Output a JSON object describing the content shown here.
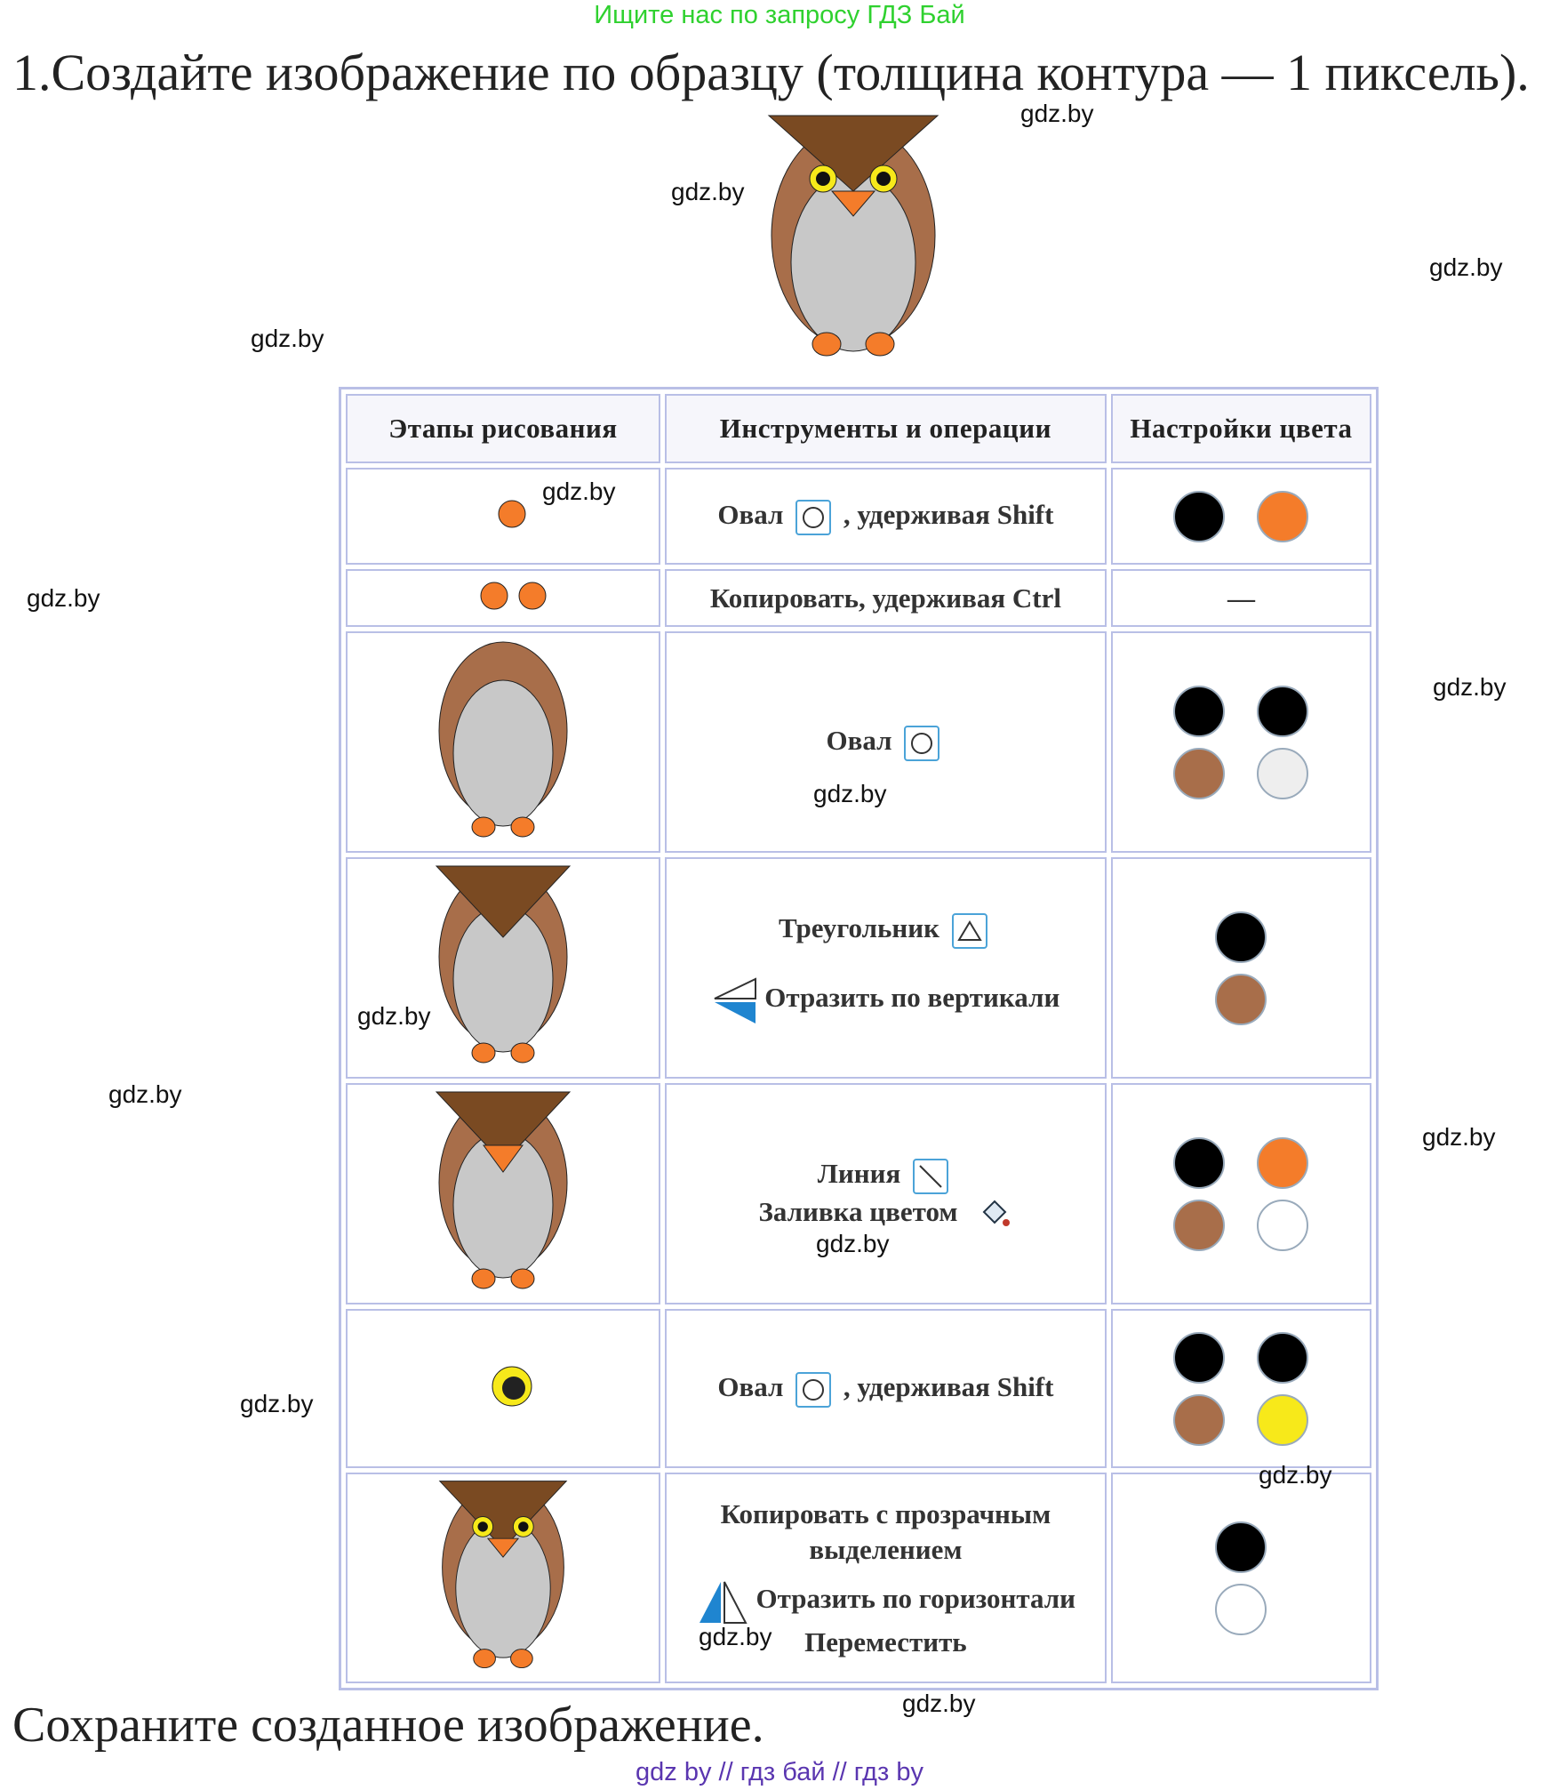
{
  "promo": "Ищите нас по запросу ГДЗ Бай",
  "task": {
    "title": "1.Создайте изображение по образцу (толщина контура — 1 пиксель).",
    "save": "Сохраните созданное изображение."
  },
  "watermark": "gdz.by",
  "footer": "gdz by  //  гдз бай  //  гдз by",
  "colors": {
    "outline": "#000000",
    "orange": "#f47c2a",
    "brown": "#a86e4a",
    "dark_brown": "#7a4a22",
    "gray": "#c8c8c8",
    "light": "#eeeeee",
    "white": "#ffffff",
    "yellow": "#f7e91a",
    "table_border": "#b9bfe6",
    "tool_blue": "#4ba3d8"
  },
  "table": {
    "headers": [
      "Этапы рисования",
      "Инструменты и операции",
      "Настройки цвета"
    ],
    "rows": [
      {
        "tool_lines": [
          "Овал",
          ", удерживая Shift"
        ],
        "icon": "oval-icon",
        "swatches": [
          "black",
          "orange"
        ]
      },
      {
        "tool_lines": [
          "Копировать, удерживая Ctrl"
        ],
        "color_text": "—"
      },
      {
        "tool_lines": [
          "Овал"
        ],
        "icon": "oval-icon",
        "swatches": [
          "black",
          "black",
          "brown",
          "light"
        ]
      },
      {
        "tool_lines": [
          "Треугольник",
          "Отразить по вертикали"
        ],
        "icon": "triangle-icon",
        "swatches": [
          "black",
          "brown"
        ]
      },
      {
        "tool_lines": [
          "Линия",
          "Заливка цветом"
        ],
        "icon": "line-icon",
        "swatches": [
          "black",
          "orange",
          "brown",
          "white"
        ]
      },
      {
        "tool_lines": [
          "Овал",
          ", удерживая Shift"
        ],
        "icon": "oval-icon",
        "swatches": [
          "black",
          "black",
          "brown",
          "yellow"
        ]
      },
      {
        "tool_lines": [
          "Копировать с прозрачным",
          "выделением",
          "Отразить по горизонтали",
          "Переместить"
        ],
        "swatches": [
          "black",
          "white"
        ]
      }
    ]
  }
}
